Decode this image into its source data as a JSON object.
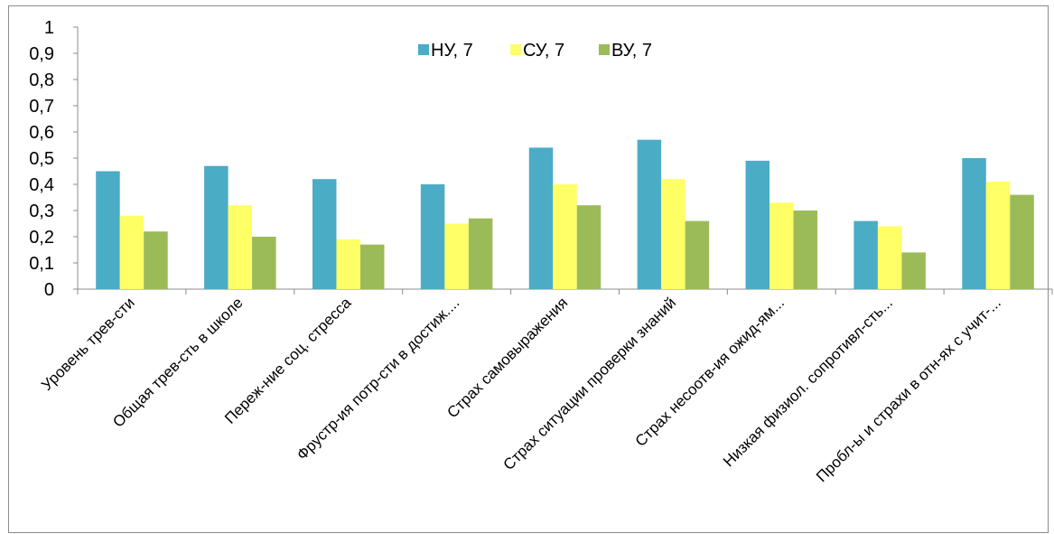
{
  "chart_data": {
    "type": "bar",
    "title": "",
    "xlabel": "",
    "ylabel": "",
    "ylim": [
      0,
      1
    ],
    "yticks": [
      "0",
      "0,1",
      "0,2",
      "0,3",
      "0,4",
      "0,5",
      "0,6",
      "0,7",
      "0,8",
      "0,9",
      "1"
    ],
    "legend_position": "top-center",
    "grid": false,
    "categories": [
      "Уровень трев-сти",
      "Общая трев-сть в школе",
      "Переж-ние соц. стресса",
      "Фрустр-ия потр-сти в достиж....",
      "Страх самовыражения",
      "Страх ситуации проверки знаний",
      "Страх несоотв-ия ожид-ям...",
      "Низкая физиол. сопротивл-сть...",
      "Пробл-ы и страхи в отн-ях с учит-..."
    ],
    "series": [
      {
        "name": "НУ, 7",
        "color": "#4bacc6",
        "values": [
          0.45,
          0.47,
          0.42,
          0.4,
          0.54,
          0.57,
          0.49,
          0.26,
          0.5
        ]
      },
      {
        "name": "СУ, 7",
        "color": "#ffff66",
        "values": [
          0.28,
          0.32,
          0.19,
          0.25,
          0.4,
          0.42,
          0.33,
          0.24,
          0.41
        ]
      },
      {
        "name": "ВУ, 7",
        "color": "#9bbb59",
        "values": [
          0.22,
          0.2,
          0.17,
          0.27,
          0.32,
          0.26,
          0.3,
          0.14,
          0.36
        ]
      }
    ]
  }
}
